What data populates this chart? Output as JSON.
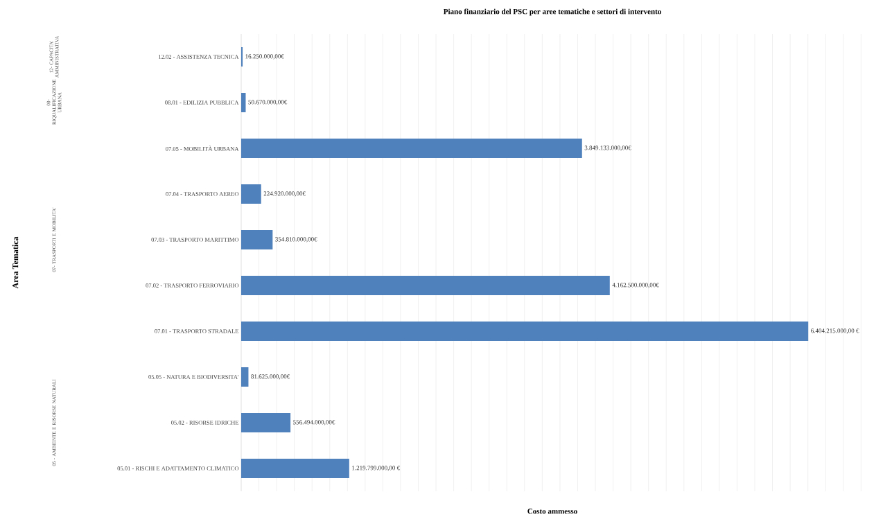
{
  "chart_data": {
    "type": "bar",
    "orientation": "horizontal",
    "title": "Piano finanziario del PSC per aree tematiche e settori di intervento",
    "xlabel": "Costo ammesso",
    "categories": [
      "12.02 - ASSISTENZA TECNICA",
      "08.01 - EDILIZIA PUBBLICA",
      "07.05 - MOBILITÀ URBANA",
      "07.04 - TRASPORTO AEREO",
      "07.03 - TRASPORTO MARITTIMO",
      "07.02 - TRASPORTO FERROVIARIO",
      "07.01 - TRASPORTO STRADALE",
      "05.05 - NATURA E BIODIVERSITA'",
      "05.02 - RISORSE IDRICHE",
      "05.01 - RISCHI E ADATTAMENTO CLIMATICO"
    ],
    "values": [
      16250000,
      50670000,
      3849133000,
      224920000,
      354810000,
      4162500000,
      6404215000,
      81625000,
      556494000,
      1219799000
    ],
    "value_labels": [
      "16.250.000,00€",
      "50.670.000,00€",
      "3.849.133.000,00€",
      "224.920.000,00€",
      "354.810.000,00€",
      "4.162.500.000,00€",
      "6.404.215.000,00 €",
      "81.625.000,00€",
      "556.494.000,00€",
      "1.219.799.000,00 €"
    ],
    "color": "#4f81bd",
    "annotations": [
      "12- CAPACITA' AMMINISTRATIVA",
      "08- RIQUALIFICAZIONE URBANA",
      "07- TRASPORTI E MOBILITA'",
      "05 - AMBIENTE E RISORSE NATURALI",
      "Area Tematica"
    ],
    "grid": "x"
  }
}
